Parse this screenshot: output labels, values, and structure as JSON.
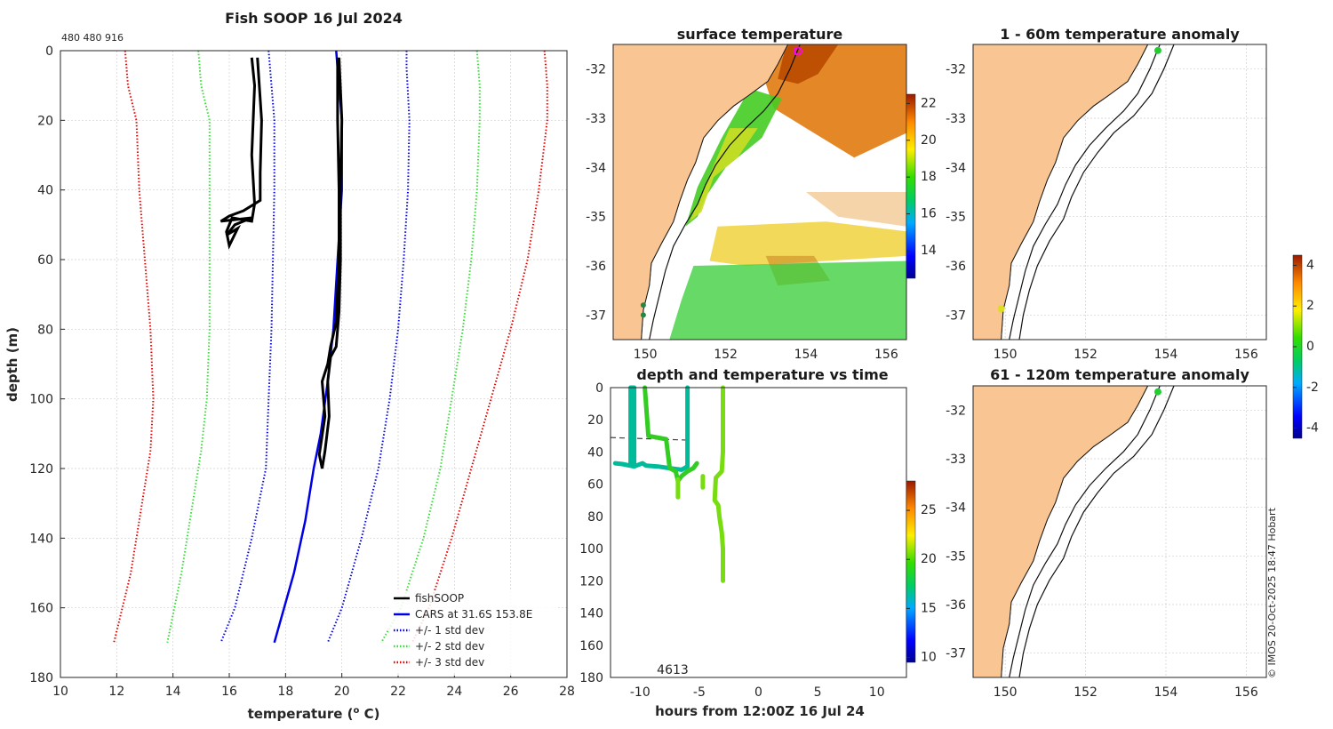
{
  "figure": {
    "copyright": "© IMOS 20-Oct-2025 18:47 Hobart"
  },
  "chart_data": [
    {
      "id": "profile",
      "type": "line",
      "title": "Fish SOOP 16 Jul 2024",
      "id_label": "480 480 916",
      "xlabel": "temperature (",
      "xlabel_sup": "o",
      "xlabel_tail": " C)",
      "ylabel": "depth (m)",
      "xlim": [
        10,
        28
      ],
      "ylim": [
        0,
        180
      ],
      "xticks": [
        10,
        12,
        14,
        16,
        18,
        20,
        22,
        24,
        26,
        28
      ],
      "yticks": [
        0,
        20,
        40,
        60,
        80,
        100,
        120,
        140,
        160,
        180
      ],
      "legend": {
        "placement": "bottom-right",
        "entries": [
          {
            "label": "fishSOOP",
            "color": "#000000",
            "style": "solid"
          },
          {
            "label": "CARS at 31.6S 153.8E",
            "color": "#0000e6",
            "style": "solid"
          },
          {
            "label": "+/- 1 std dev",
            "color": "#0000e6",
            "style": "dotted"
          },
          {
            "label": "+/- 2 std dev",
            "color": "#33dd33",
            "style": "dotted"
          },
          {
            "label": "+/- 3 std dev",
            "color": "#e60000",
            "style": "dotted"
          }
        ]
      },
      "series": [
        {
          "name": "CARS at 31.6S 153.8E",
          "color": "#0000e6",
          "style": "solid",
          "points": [
            [
              19.8,
              0
            ],
            [
              19.85,
              5
            ],
            [
              20.0,
              20
            ],
            [
              20.0,
              40
            ],
            [
              19.85,
              60
            ],
            [
              19.7,
              80
            ],
            [
              19.5,
              95
            ],
            [
              19.25,
              110
            ],
            [
              19.0,
              120
            ],
            [
              18.7,
              135
            ],
            [
              18.3,
              150
            ],
            [
              17.6,
              170
            ]
          ]
        },
        {
          "name": "std1_left",
          "color": "#0000e6",
          "style": "dotted",
          "points": [
            [
              17.4,
              0
            ],
            [
              17.45,
              5
            ],
            [
              17.6,
              20
            ],
            [
              17.6,
              40
            ],
            [
              17.55,
              60
            ],
            [
              17.5,
              80
            ],
            [
              17.4,
              100
            ],
            [
              17.3,
              120
            ],
            [
              16.8,
              140
            ],
            [
              16.2,
              160
            ],
            [
              15.7,
              170
            ]
          ]
        },
        {
          "name": "std1_right",
          "color": "#0000e6",
          "style": "dotted",
          "points": [
            [
              22.3,
              0
            ],
            [
              22.3,
              5
            ],
            [
              22.4,
              20
            ],
            [
              22.35,
              40
            ],
            [
              22.2,
              60
            ],
            [
              22.0,
              80
            ],
            [
              21.7,
              100
            ],
            [
              21.3,
              120
            ],
            [
              20.7,
              140
            ],
            [
              20.0,
              160
            ],
            [
              19.5,
              170
            ]
          ]
        },
        {
          "name": "std2_left",
          "color": "#33dd33",
          "style": "dotted",
          "points": [
            [
              14.9,
              0
            ],
            [
              15.0,
              10
            ],
            [
              15.3,
              20
            ],
            [
              15.3,
              40
            ],
            [
              15.3,
              60
            ],
            [
              15.3,
              80
            ],
            [
              15.2,
              100
            ],
            [
              15.0,
              115
            ],
            [
              14.7,
              130
            ],
            [
              14.3,
              150
            ],
            [
              13.8,
              170
            ]
          ]
        },
        {
          "name": "std2_right",
          "color": "#33dd33",
          "style": "dotted",
          "points": [
            [
              24.8,
              0
            ],
            [
              24.9,
              10
            ],
            [
              24.9,
              20
            ],
            [
              24.8,
              40
            ],
            [
              24.6,
              60
            ],
            [
              24.3,
              80
            ],
            [
              23.9,
              100
            ],
            [
              23.5,
              120
            ],
            [
              22.9,
              140
            ],
            [
              22.1,
              160
            ],
            [
              21.4,
              170
            ]
          ]
        },
        {
          "name": "std3_left",
          "color": "#e60000",
          "style": "dotted",
          "points": [
            [
              12.3,
              0
            ],
            [
              12.4,
              10
            ],
            [
              12.7,
              20
            ],
            [
              12.8,
              40
            ],
            [
              13.0,
              60
            ],
            [
              13.2,
              80
            ],
            [
              13.3,
              100
            ],
            [
              13.2,
              115
            ],
            [
              12.9,
              130
            ],
            [
              12.5,
              150
            ],
            [
              11.9,
              170
            ]
          ]
        },
        {
          "name": "std3_right",
          "color": "#e60000",
          "style": "dotted",
          "points": [
            [
              27.2,
              0
            ],
            [
              27.3,
              10
            ],
            [
              27.3,
              20
            ],
            [
              27.0,
              40
            ],
            [
              26.6,
              60
            ],
            [
              26.0,
              80
            ],
            [
              25.3,
              100
            ],
            [
              24.6,
              120
            ],
            [
              23.9,
              140
            ],
            [
              23.1,
              160
            ],
            [
              22.5,
              170
            ]
          ]
        },
        {
          "name": "fishSOOP",
          "color": "#000000",
          "style": "solid",
          "points": [
            [
              17.0,
              2
            ],
            [
              17.15,
              20
            ],
            [
              17.1,
              35
            ],
            [
              17.1,
              43
            ],
            [
              16.5,
              46
            ],
            [
              16.0,
              47.5
            ],
            [
              15.7,
              49
            ],
            [
              16.8,
              48
            ],
            [
              16.2,
              50
            ],
            [
              15.9,
              53
            ],
            [
              16.3,
              51
            ],
            [
              16.0,
              56
            ],
            [
              15.9,
              52
            ],
            [
              16.1,
              48
            ],
            [
              16.8,
              49
            ],
            [
              16.9,
              44
            ],
            [
              16.8,
              30
            ],
            [
              16.9,
              10
            ],
            [
              16.8,
              2
            ]
          ]
        },
        {
          "name": "fishSOOP_2",
          "color": "#000000",
          "style": "solid",
          "points": [
            [
              19.9,
              2
            ],
            [
              20.0,
              20
            ],
            [
              19.95,
              40
            ],
            [
              19.95,
              60
            ],
            [
              19.9,
              75
            ],
            [
              19.8,
              85
            ],
            [
              19.6,
              88
            ],
            [
              19.5,
              95
            ],
            [
              19.55,
              105
            ],
            [
              19.4,
              115
            ],
            [
              19.3,
              120
            ],
            [
              19.2,
              116
            ],
            [
              19.4,
              105
            ],
            [
              19.3,
              95
            ],
            [
              19.5,
              90
            ],
            [
              19.6,
              85
            ],
            [
              19.8,
              78
            ],
            [
              19.9,
              60
            ],
            [
              19.9,
              40
            ],
            [
              19.85,
              20
            ],
            [
              19.85,
              2
            ]
          ]
        }
      ]
    },
    {
      "id": "sst_map",
      "type": "heatmap",
      "title": "surface temperature",
      "xlim": [
        149.2,
        156.5
      ],
      "ylim": [
        -37.5,
        -31.5
      ],
      "xticks": [
        150,
        152,
        154,
        156
      ],
      "yticks": [
        -32,
        -33,
        -34,
        -35,
        -36,
        -37
      ],
      "colorbar": {
        "ticks": [
          14,
          16,
          18,
          20,
          22
        ],
        "range": [
          12.5,
          22.5
        ]
      },
      "marker": {
        "lon": 153.8,
        "lat": -31.6,
        "color": "#ff00ff"
      }
    },
    {
      "id": "depth_time",
      "type": "scatter",
      "title": "depth and temperature vs time",
      "xlabel": "hours from 12:00Z 16 Jul 24",
      "annotation": "4613",
      "xlim": [
        -12.5,
        12.5
      ],
      "ylim": [
        0,
        180
      ],
      "xticks": [
        -10,
        -5,
        0,
        5,
        10
      ],
      "yticks": [
        0,
        20,
        40,
        60,
        80,
        100,
        120,
        140,
        160,
        180
      ],
      "dashed_depth": 31,
      "colorbar": {
        "ticks": [
          10,
          15,
          20,
          25
        ],
        "range": [
          9.5,
          28
        ]
      },
      "tracks": [
        {
          "temp": 16,
          "points": [
            [
              -12.1,
              47
            ],
            [
              -11.5,
              47.5
            ],
            [
              -10.5,
              49
            ],
            [
              -9.8,
              47
            ],
            [
              -9.5,
              48.5
            ],
            [
              -8.5,
              49
            ],
            [
              -7.5,
              50
            ],
            [
              -6.5,
              51
            ],
            [
              -6,
              49
            ],
            [
              -6,
              0
            ]
          ]
        },
        {
          "temp": 16,
          "points": [
            [
              -10.8,
              48
            ],
            [
              -10.8,
              0
            ],
            [
              -10.5,
              0
            ],
            [
              -10.5,
              48
            ]
          ]
        },
        {
          "temp": 18.5,
          "points": [
            [
              -9.6,
              0
            ],
            [
              -9.3,
              30
            ],
            [
              -7.8,
              32
            ],
            [
              -7.5,
              50
            ],
            [
              -7.0,
              52
            ],
            [
              -6.8,
              58
            ],
            [
              -6.5,
              55
            ],
            [
              -6.0,
              52
            ],
            [
              -5.5,
              50
            ],
            [
              -5.2,
              47
            ]
          ]
        },
        {
          "temp": 20,
          "points": [
            [
              -6.8,
              57
            ],
            [
              -6.8,
              68
            ]
          ]
        },
        {
          "temp": 20,
          "points": [
            [
              -4.7,
              55
            ],
            [
              -4.7,
              62
            ]
          ]
        },
        {
          "temp": 21,
          "points": [
            [
              -3,
              0
            ],
            [
              -3,
              40
            ],
            [
              -3.1,
              52
            ],
            [
              -3.6,
              56
            ],
            [
              -3.7,
              70
            ],
            [
              -3.4,
              73
            ],
            [
              -3.3,
              80
            ],
            [
              -3.1,
              90
            ],
            [
              -3.0,
              100
            ],
            [
              -3.0,
              110
            ],
            [
              -3.0,
              120
            ]
          ]
        }
      ]
    },
    {
      "id": "anom_1_60",
      "type": "scatter",
      "title": "1 - 60m temperature anomaly",
      "xlim": [
        149.2,
        156.5
      ],
      "ylim": [
        -37.5,
        -31.5
      ],
      "xticks": [
        150,
        152,
        154,
        156
      ],
      "yticks": [
        -32,
        -33,
        -34,
        -35,
        -36,
        -37
      ],
      "points": [
        {
          "lon": 153.8,
          "lat": -31.55,
          "anomaly": 0.2,
          "color": "#22cc33"
        },
        {
          "lon": 149.9,
          "lat": -36.8,
          "anomaly": 2.2,
          "color": "#dddd22"
        }
      ]
    },
    {
      "id": "anom_61_120",
      "type": "scatter",
      "title": "61 - 120m temperature anomaly",
      "xlim": [
        149.2,
        156.5
      ],
      "ylim": [
        -37.5,
        -31.5
      ],
      "xticks": [
        150,
        152,
        154,
        156
      ],
      "yticks": [
        -32,
        -33,
        -34,
        -35,
        -36,
        -37
      ],
      "colorbar": {
        "ticks": [
          -4,
          -2,
          0,
          2,
          4
        ],
        "range": [
          -4.5,
          4.5
        ]
      },
      "points": [
        {
          "lon": 153.8,
          "lat": -31.55,
          "anomaly": 0.3,
          "color": "#22cc33"
        }
      ]
    }
  ]
}
